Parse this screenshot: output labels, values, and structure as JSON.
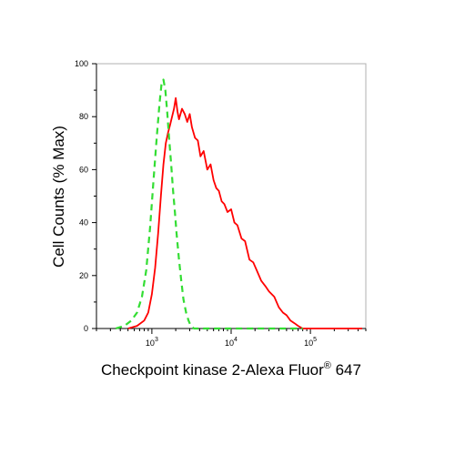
{
  "chart_data": {
    "type": "line",
    "title": "",
    "xlabel": "Checkpoint kinase 2-Alexa Fluor",
    "xlabel_sup": "®",
    "xlabel_suffix": " 647",
    "ylabel": "Cell Counts (% Max)",
    "x_scale": "log",
    "xlim": [
      200,
      500000
    ],
    "ylim": [
      0,
      100
    ],
    "x_tick_labels": [
      {
        "value": 1000,
        "base": "10",
        "exp": "3"
      },
      {
        "value": 10000,
        "base": "10",
        "exp": "4"
      },
      {
        "value": 100000,
        "base": "10",
        "exp": "5"
      }
    ],
    "y_ticks": [
      0,
      20,
      40,
      60,
      80,
      100
    ],
    "y_tick_labels": [
      "0",
      "20",
      "40",
      "60",
      "80",
      "100"
    ],
    "grid": false,
    "legend": "none",
    "series": [
      {
        "color": "#ff0000",
        "style": "solid",
        "x": [
          500,
          650,
          800,
          900,
          1000,
          1100,
          1200,
          1300,
          1400,
          1500,
          1600,
          1700,
          1800,
          1900,
          2000,
          2100,
          2200,
          2400,
          2600,
          2800,
          3000,
          3200,
          3500,
          3800,
          4100,
          4500,
          5000,
          5500,
          6000,
          6500,
          7000,
          7600,
          8200,
          9000,
          10000,
          11000,
          12000,
          13500,
          15000,
          17000,
          19000,
          21000,
          24000,
          27000,
          30000,
          35000,
          40000,
          45000,
          50000,
          56000,
          63000,
          70000,
          80000,
          90000,
          100000,
          200000,
          450000
        ],
        "y": [
          0,
          1,
          3,
          6,
          13,
          23,
          36,
          50,
          62,
          70,
          74,
          77,
          80,
          83,
          87,
          82,
          79,
          83,
          81,
          78,
          81,
          76,
          72,
          71,
          65,
          67,
          60,
          62,
          56,
          53,
          52,
          48,
          47,
          44,
          45,
          40,
          39,
          34,
          33,
          26,
          25,
          22,
          18,
          16,
          14,
          12,
          8,
          6,
          5,
          3,
          2,
          1,
          0,
          0,
          0,
          0,
          0
        ]
      },
      {
        "color": "#33dd33",
        "style": "dashed",
        "x": [
          350,
          450,
          550,
          650,
          750,
          850,
          950,
          1050,
          1150,
          1250,
          1320,
          1400,
          1480,
          1560,
          1650,
          1750,
          1850,
          1950,
          2050,
          2200,
          2350,
          2500,
          2700,
          2900,
          3100,
          3400,
          3800,
          5000,
          10000,
          30000,
          80000
        ],
        "y": [
          0,
          1,
          3,
          6,
          12,
          22,
          38,
          56,
          72,
          85,
          92,
          94,
          90,
          82,
          72,
          62,
          52,
          44,
          36,
          26,
          18,
          11,
          6,
          3,
          1,
          0,
          0,
          0,
          0,
          0,
          0
        ]
      }
    ]
  }
}
